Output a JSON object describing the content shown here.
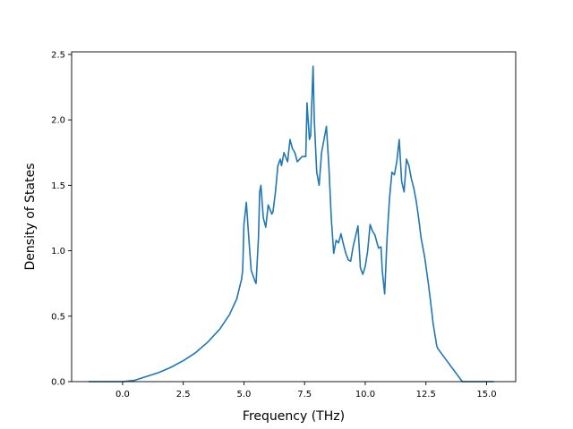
{
  "chart_data": {
    "type": "line",
    "title": "",
    "xlabel": "Frequency (THz)",
    "ylabel": "Density of States",
    "xlim": [
      -2.1,
      16.2
    ],
    "ylim": [
      0,
      2.52
    ],
    "xticks": [
      0.0,
      2.5,
      5.0,
      7.5,
      10.0,
      12.5,
      15.0
    ],
    "xtick_labels": [
      "0.0",
      "2.5",
      "5.0",
      "7.5",
      "10.0",
      "12.5",
      "15.0"
    ],
    "yticks": [
      0.0,
      0.5,
      1.0,
      1.5,
      2.0,
      2.5
    ],
    "ytick_labels": [
      "0.0",
      "0.5",
      "1.0",
      "1.5",
      "2.0",
      "2.5"
    ],
    "grid": false,
    "legend": "none",
    "series_color": "#1f77b4",
    "series": [
      {
        "x": [
          -1.4,
          0.0,
          0.5,
          1.0,
          1.5,
          2.0,
          2.5,
          3.0,
          3.5,
          4.0,
          4.4,
          4.7,
          4.9,
          4.95,
          5.0,
          5.1,
          5.2,
          5.3,
          5.45,
          5.5,
          5.6,
          5.65,
          5.7,
          5.8,
          5.9,
          6.0,
          6.15,
          6.2,
          6.3,
          6.4,
          6.5,
          6.55,
          6.65,
          6.8,
          6.9,
          7.0,
          7.1,
          7.2,
          7.3,
          7.4,
          7.55,
          7.6,
          7.7,
          7.75,
          7.85,
          7.9,
          8.0,
          8.1,
          8.2,
          8.3,
          8.4,
          8.5,
          8.6,
          8.7,
          8.8,
          8.9,
          9.0,
          9.1,
          9.2,
          9.3,
          9.4,
          9.5,
          9.7,
          9.8,
          9.9,
          10.0,
          10.1,
          10.2,
          10.3,
          10.4,
          10.5,
          10.55,
          10.65,
          10.7,
          10.8,
          10.9,
          11.0,
          11.1,
          11.2,
          11.3,
          11.4,
          11.5,
          11.6,
          11.7,
          11.8,
          11.9,
          12.0,
          12.1,
          12.2,
          12.3,
          12.45,
          12.6,
          12.7,
          12.8,
          12.95,
          13.0,
          13.2,
          13.4,
          13.6,
          13.8,
          14.0,
          14.5,
          15.0,
          15.3
        ],
        "y": [
          0.0,
          0.0,
          0.01,
          0.04,
          0.07,
          0.11,
          0.16,
          0.22,
          0.3,
          0.4,
          0.51,
          0.63,
          0.78,
          0.85,
          1.2,
          1.37,
          1.1,
          0.85,
          0.77,
          0.75,
          1.1,
          1.45,
          1.5,
          1.25,
          1.18,
          1.35,
          1.28,
          1.3,
          1.45,
          1.65,
          1.7,
          1.65,
          1.75,
          1.68,
          1.85,
          1.78,
          1.75,
          1.68,
          1.7,
          1.72,
          1.72,
          2.13,
          1.85,
          1.88,
          2.41,
          2.0,
          1.6,
          1.5,
          1.75,
          1.85,
          1.95,
          1.65,
          1.25,
          0.98,
          1.08,
          1.06,
          1.13,
          1.05,
          0.98,
          0.93,
          0.92,
          1.03,
          1.19,
          0.87,
          0.82,
          0.88,
          1.0,
          1.2,
          1.15,
          1.12,
          1.05,
          1.02,
          1.03,
          0.85,
          0.67,
          1.1,
          1.4,
          1.6,
          1.58,
          1.68,
          1.85,
          1.53,
          1.45,
          1.7,
          1.65,
          1.55,
          1.48,
          1.38,
          1.25,
          1.1,
          0.95,
          0.75,
          0.6,
          0.44,
          0.27,
          0.25,
          0.2,
          0.15,
          0.1,
          0.05,
          0.0,
          0.0,
          0.0,
          0.0
        ]
      }
    ]
  }
}
